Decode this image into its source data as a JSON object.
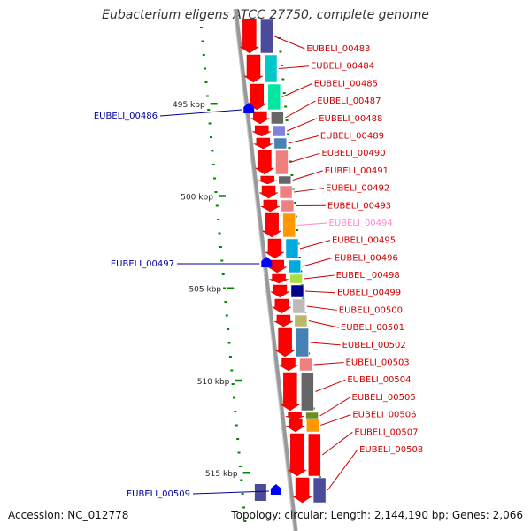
{
  "title": "Eubacterium eligens ATCC 27750, complete genome",
  "accession": "Accession: NC_012778",
  "topology": "Topology: circular; Length: 2,144,190 bp; Genes: 2,066",
  "colors": {
    "forward_gene": "#ff0000",
    "reverse_gene": "#0000ff",
    "forward_label": "#cc0000",
    "reverse_label": "#000099",
    "highlight_label": "#ff88cc",
    "tick": "#008800",
    "backbone": "#999999"
  },
  "kbp_ticks": [
    {
      "kbp": 495,
      "label": "495 kbp"
    },
    {
      "kbp": 500,
      "label": "500 kbp"
    },
    {
      "kbp": 505,
      "label": "505 kbp"
    },
    {
      "kbp": 510,
      "label": "510 kbp"
    },
    {
      "kbp": 515,
      "label": "515 kbp"
    }
  ],
  "forward_genes": [
    {
      "id": "EUBELI_00483",
      "kbp": 492.6,
      "color": "#4b4b9b"
    },
    {
      "id": "EUBELI_00484",
      "kbp": 493.3,
      "color": "#00c8c8"
    },
    {
      "id": "EUBELI_00485",
      "kbp": 494.1,
      "color": "#00e8a0"
    },
    {
      "id": "EUBELI_00487",
      "kbp": 495.4,
      "color": "#666666"
    },
    {
      "id": "EUBELI_00488",
      "kbp": 496.0,
      "color": "#8080e0"
    },
    {
      "id": "EUBELI_00489",
      "kbp": 496.6,
      "color": "#4682b4"
    },
    {
      "id": "EUBELI_00490",
      "kbp": 497.6,
      "color": "#f08080"
    },
    {
      "id": "EUBELI_00491",
      "kbp": 498.3,
      "color": "#666666"
    },
    {
      "id": "EUBELI_00492",
      "kbp": 498.7,
      "color": "#f08080"
    },
    {
      "id": "EUBELI_00493",
      "kbp": 499.4,
      "color": "#f08080"
    },
    {
      "id": "EUBELI_00494",
      "kbp": 500.2,
      "color": "#ff9900",
      "highlight": true
    },
    {
      "id": "EUBELI_00495",
      "kbp": 501.0,
      "color": "#00aadd"
    },
    {
      "id": "EUBELI_00496",
      "kbp": 501.8,
      "color": "#00aadd"
    },
    {
      "id": "EUBELI_00498",
      "kbp": 503.4,
      "color": "#aadd44"
    },
    {
      "id": "EUBELI_00499",
      "kbp": 504.0,
      "color": "#000088"
    },
    {
      "id": "EUBELI_00500",
      "kbp": 504.7,
      "color": "#bbbbbb"
    },
    {
      "id": "EUBELI_00501",
      "kbp": 505.5,
      "color": "#bbb86a"
    },
    {
      "id": "EUBELI_00502",
      "kbp": 506.3,
      "color": "#4682b4"
    },
    {
      "id": "EUBELI_00503",
      "kbp": 507.6,
      "color": "#f08080"
    },
    {
      "id": "EUBELI_00504",
      "kbp": 508.6,
      "color": "#666666"
    },
    {
      "id": "EUBELI_00505",
      "kbp": 510.2,
      "color": "#6b8e23"
    },
    {
      "id": "EUBELI_00506",
      "kbp": 511.3,
      "color": "#ff9900"
    },
    {
      "id": "EUBELI_00507",
      "kbp": 511.8,
      "color": "#ff0000"
    },
    {
      "id": "EUBELI_00508",
      "kbp": 513.6,
      "color": "#4b4b9b"
    }
  ],
  "reverse_genes": [
    {
      "id": "EUBELI_00486",
      "kbp": 495.0
    },
    {
      "id": "EUBELI_00497",
      "kbp": 503.0
    },
    {
      "id": "EUBELI_00509",
      "kbp": 516.0
    }
  ]
}
